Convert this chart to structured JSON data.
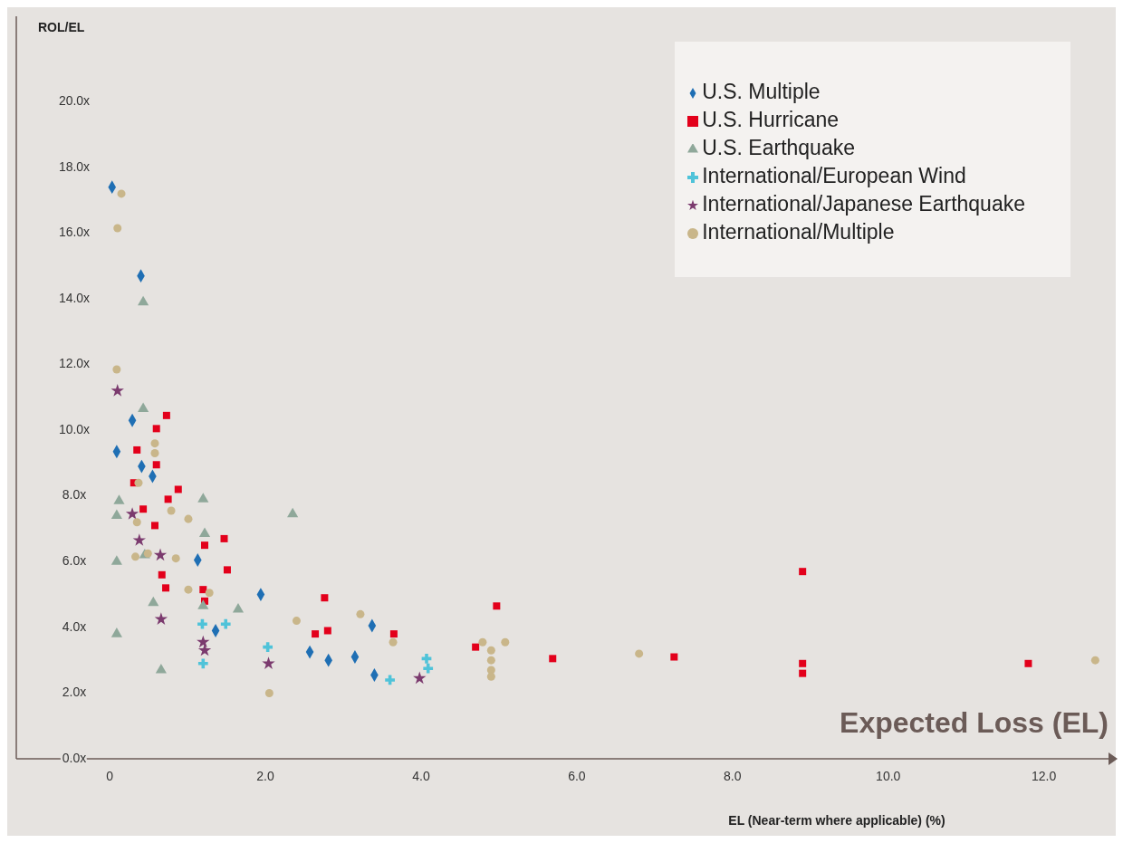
{
  "chart_data": {
    "type": "scatter",
    "ylabel": "ROL/EL",
    "xlabel": "EL (Near-term where applicable) (%)",
    "annotations": [
      "Expected Loss (EL)"
    ],
    "xlim": [
      -1.2,
      12.9
    ],
    "ylim": [
      0,
      22.6
    ],
    "xticks": [
      0,
      {
        "value": 2,
        "label": "2.0"
      },
      {
        "value": 4,
        "label": "4.0"
      },
      {
        "value": 6,
        "label": "6.0"
      },
      {
        "value": 8,
        "label": "8.0"
      },
      {
        "value": 10,
        "label": "10.0"
      },
      {
        "value": 12,
        "label": "12.0"
      }
    ],
    "yticks": [
      {
        "value": 0,
        "label": "0.0x"
      },
      {
        "value": 2,
        "label": "2.0x"
      },
      {
        "value": 4,
        "label": "4.0x"
      },
      {
        "value": 6,
        "label": "6.0x"
      },
      {
        "value": 8,
        "label": "8.0x"
      },
      {
        "value": 10,
        "label": "10.0x"
      },
      {
        "value": 12,
        "label": "12.0x"
      },
      {
        "value": 14,
        "label": "14.0x"
      },
      {
        "value": 16,
        "label": "16.0x"
      },
      {
        "value": 18,
        "label": "18.0x"
      },
      {
        "value": 20,
        "label": "20.0x"
      }
    ],
    "grid": false,
    "legend": "top right",
    "series": [
      {
        "name": "U.S. Multiple",
        "color": "#1f6fb4",
        "marker": "diamond",
        "x": [
          0.03,
          0.4,
          0.29,
          0.09,
          0.41,
          0.55,
          1.13,
          1.94,
          1.36,
          2.57,
          2.81,
          3.15,
          3.37,
          3.4
        ],
        "values": [
          17.4,
          14.7,
          10.3,
          9.35,
          8.9,
          8.6,
          6.05,
          5.0,
          3.9,
          3.25,
          3.0,
          3.1,
          4.05,
          2.55
        ]
      },
      {
        "name": "U.S. Hurricane",
        "color": "#e3001b",
        "marker": "square",
        "x": [
          0.73,
          0.6,
          0.35,
          0.6,
          0.88,
          0.75,
          0.43,
          0.58,
          1.47,
          1.22,
          1.51,
          0.67,
          0.72,
          1.2,
          1.22,
          0.31,
          2.76,
          2.64,
          2.8,
          3.65,
          4.97,
          4.7,
          5.69,
          7.25,
          8.9,
          8.9,
          8.9,
          11.8
        ],
        "values": [
          10.45,
          10.05,
          9.4,
          8.95,
          8.2,
          7.9,
          7.6,
          7.1,
          6.7,
          6.5,
          5.75,
          5.6,
          5.2,
          5.15,
          4.8,
          8.4,
          4.9,
          3.8,
          3.9,
          3.8,
          4.65,
          3.4,
          3.05,
          3.1,
          5.7,
          2.9,
          2.6,
          2.9
        ]
      },
      {
        "name": "U.S. Earthquake",
        "color": "#8fa89a",
        "marker": "triangle",
        "x": [
          0.43,
          0.43,
          0.12,
          0.09,
          1.2,
          1.22,
          0.09,
          0.56,
          1.65,
          0.09,
          0.66,
          2.35,
          0.45,
          1.2
        ],
        "values": [
          13.9,
          10.65,
          7.85,
          7.4,
          7.9,
          6.85,
          6.0,
          4.75,
          4.55,
          3.8,
          2.7,
          7.45,
          6.2,
          4.65
        ]
      },
      {
        "name": "International/European Wind",
        "color": "#4fc3d9",
        "marker": "cross",
        "x": [
          1.19,
          1.2,
          1.49,
          2.03,
          4.07,
          4.09,
          3.6
        ],
        "values": [
          4.1,
          2.9,
          4.1,
          3.4,
          3.05,
          2.75,
          2.4
        ]
      },
      {
        "name": "International/Japanese Earthquake",
        "color": "#7b3a6e",
        "marker": "star",
        "x": [
          0.1,
          0.29,
          0.38,
          0.65,
          0.66,
          1.2,
          1.22,
          2.04,
          3.98
        ],
        "values": [
          11.2,
          7.45,
          6.65,
          6.2,
          4.25,
          3.55,
          3.3,
          2.9,
          2.45
        ]
      },
      {
        "name": "International/Multiple",
        "color": "#c9b68a",
        "marker": "circle",
        "x": [
          0.15,
          0.1,
          0.09,
          0.58,
          0.58,
          0.37,
          0.35,
          0.49,
          0.85,
          1.01,
          0.79,
          1.01,
          1.28,
          0.33,
          2.4,
          2.05,
          3.22,
          3.64,
          5.08,
          4.79,
          4.9,
          4.9,
          4.9,
          4.9,
          6.8,
          12.66
        ],
        "values": [
          17.2,
          16.15,
          11.85,
          9.6,
          9.3,
          8.4,
          7.2,
          6.25,
          6.1,
          7.3,
          7.55,
          5.15,
          5.05,
          6.15,
          4.2,
          2.0,
          4.4,
          3.55,
          3.55,
          3.55,
          3.3,
          3.0,
          2.7,
          2.5,
          3.2,
          3.0
        ]
      }
    ]
  }
}
